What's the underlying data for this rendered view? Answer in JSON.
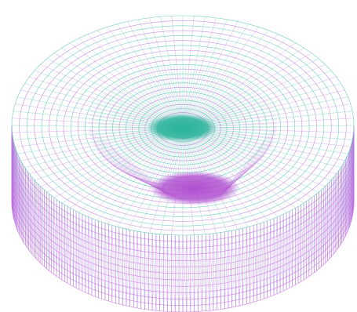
{
  "scene": {
    "subject": "cylindrical-wireframe-mesh",
    "background_color": "#ffffff",
    "colors": {
      "top_face": "#3dbfa8",
      "top_face_alt": "#b86ad6",
      "side_wall": "#c46ae0",
      "side_wall_alt": "#4fc2c8",
      "inner_core_top": "#2bb59a",
      "inner_core_bottom": "#b04fd0"
    }
  }
}
